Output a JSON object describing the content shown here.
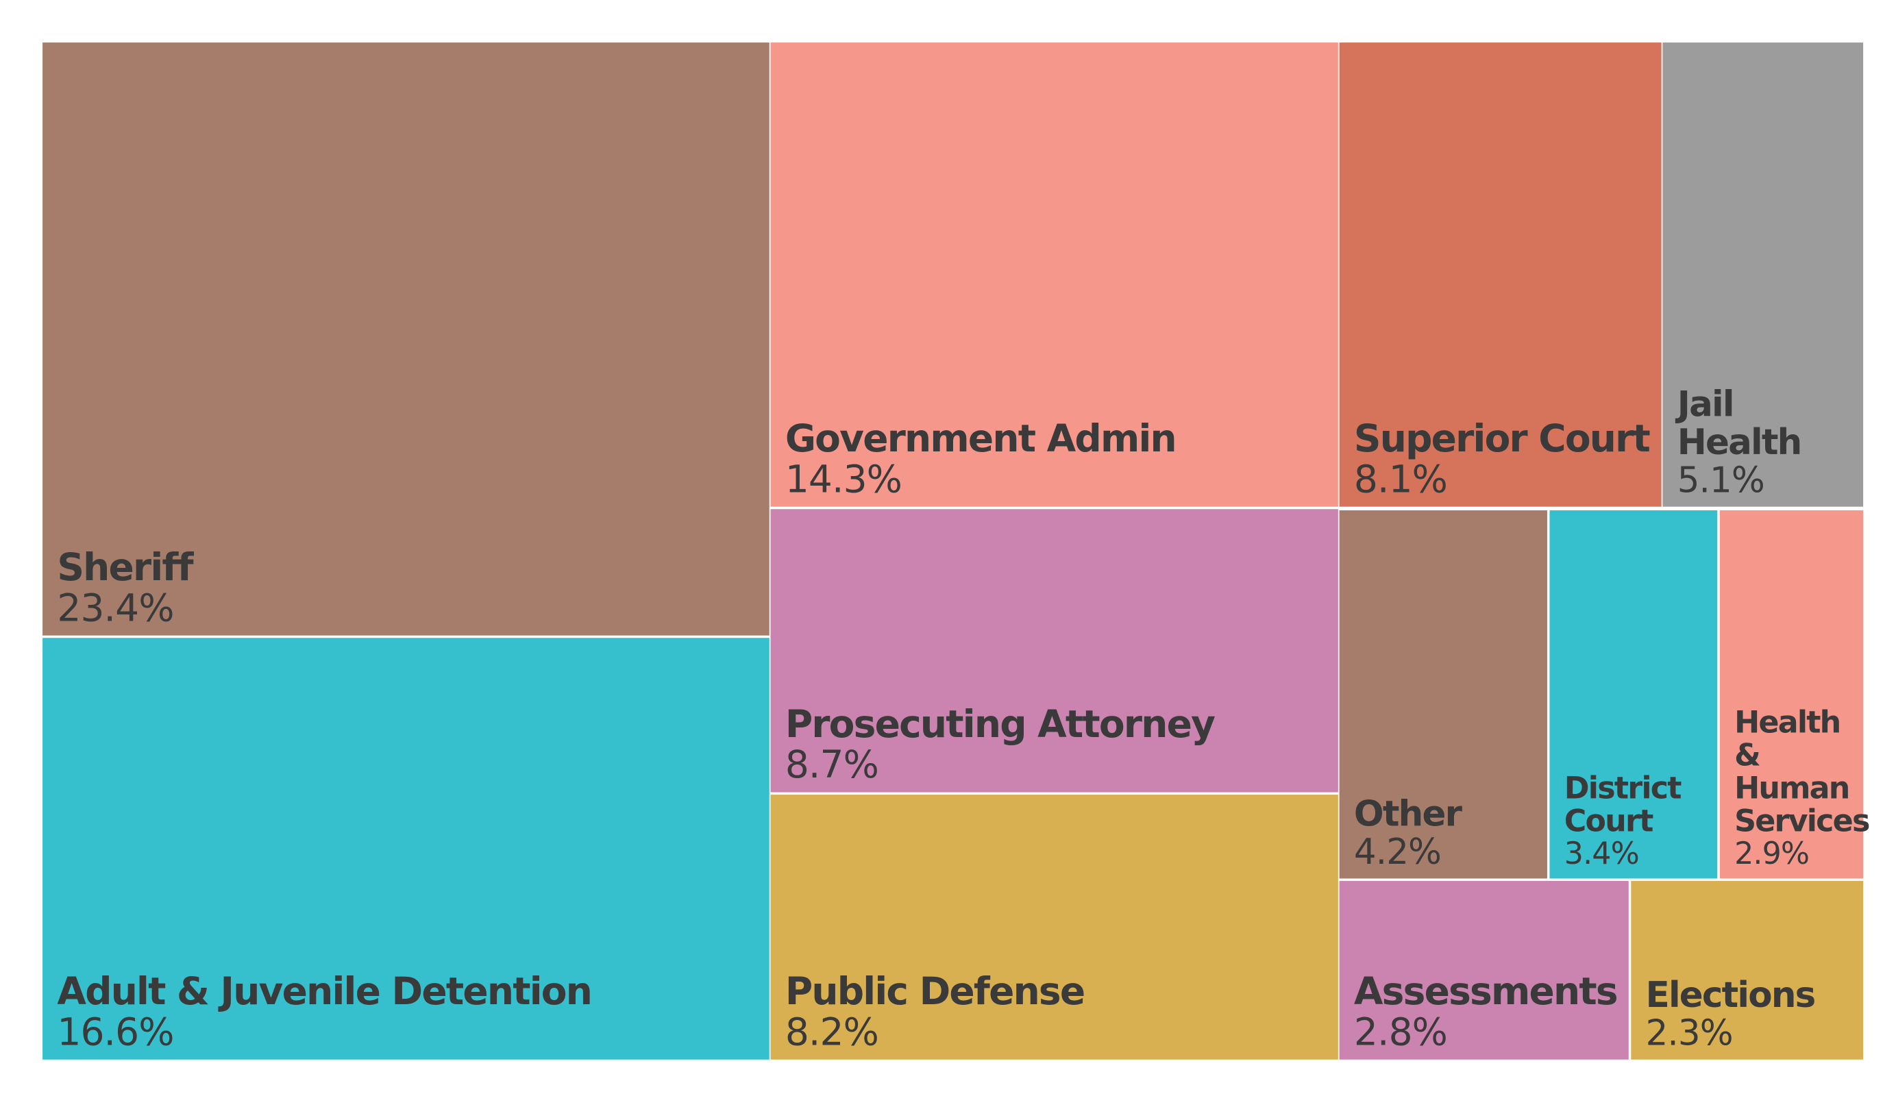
{
  "chart_data": {
    "type": "treemap",
    "title": "",
    "items": [
      {
        "name": "Sheriff",
        "value": 23.4,
        "label": "23.4%",
        "color": "#a67d6a"
      },
      {
        "name": "Adult & Juvenile Detention",
        "value": 16.6,
        "label": "16.6%",
        "color": "#36bfcc"
      },
      {
        "name": "Government Admin",
        "value": 14.3,
        "label": "14.3%",
        "color": "#f5978b"
      },
      {
        "name": "Prosecuting Attorney",
        "value": 8.7,
        "label": "8.7%",
        "color": "#cb84b0"
      },
      {
        "name": "Public Defense",
        "value": 8.2,
        "label": "8.2%",
        "color": "#d8b052"
      },
      {
        "name": "Superior Court",
        "value": 8.1,
        "label": "8.1%",
        "color": "#d5745a"
      },
      {
        "name": "Jail Health",
        "value": 5.1,
        "label": "5.1%",
        "color": "#9c9c9c"
      },
      {
        "name": "Other",
        "value": 4.2,
        "label": "4.2%",
        "color": "#a67d6a"
      },
      {
        "name": "District Court",
        "value": 3.4,
        "label": "3.4%",
        "color": "#36bfcc"
      },
      {
        "name": "Health & Human Services",
        "value": 2.9,
        "label": "2.9%",
        "color": "#f5978b"
      },
      {
        "name": "Assessments",
        "value": 2.8,
        "label": "2.8%",
        "color": "#cb84b0"
      },
      {
        "name": "Elections",
        "value": 2.3,
        "label": "2.3%",
        "color": "#d8b052"
      }
    ],
    "text_color": "#3a3a3a"
  }
}
